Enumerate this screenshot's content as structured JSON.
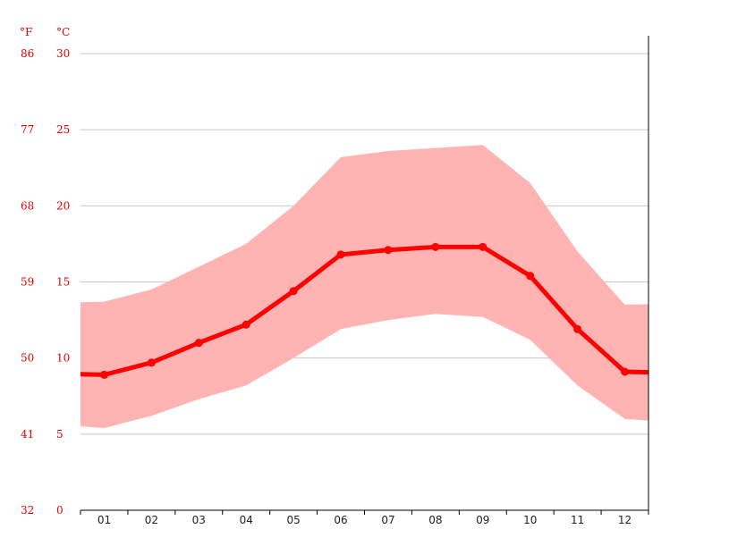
{
  "chart_data": {
    "type": "line",
    "title": "",
    "xlabel": "",
    "ylabel": "",
    "categories": [
      "01",
      "02",
      "03",
      "04",
      "05",
      "06",
      "07",
      "08",
      "09",
      "10",
      "11",
      "12"
    ],
    "unit_labels": {
      "fahrenheit": "°F",
      "celsius": "°C"
    },
    "y_ticks_celsius": [
      "30",
      "25",
      "20",
      "15",
      "10",
      "5",
      "0"
    ],
    "y_ticks_fahrenheit": [
      "86",
      "77",
      "68",
      "59",
      "50",
      "41",
      "32"
    ],
    "ylim": [
      0,
      30
    ],
    "grid": true,
    "colors": {
      "line": "#ff0000",
      "band": "#ffb3b3",
      "axis_text": "#e00000",
      "grid": "#c8c8c8"
    },
    "series": [
      {
        "role": "mean",
        "values": [
          8.9,
          9.7,
          11.0,
          12.2,
          14.4,
          16.8,
          17.1,
          17.3,
          17.3,
          15.4,
          11.9,
          9.1
        ]
      },
      {
        "role": "max",
        "values": [
          13.7,
          14.5,
          16.0,
          17.5,
          20.0,
          23.2,
          23.6,
          23.8,
          24.0,
          21.5,
          17.0,
          13.5
        ]
      },
      {
        "role": "min",
        "values": [
          5.4,
          6.2,
          7.3,
          8.2,
          10.0,
          11.9,
          12.5,
          12.9,
          12.7,
          11.2,
          8.2,
          6.0
        ]
      }
    ]
  }
}
